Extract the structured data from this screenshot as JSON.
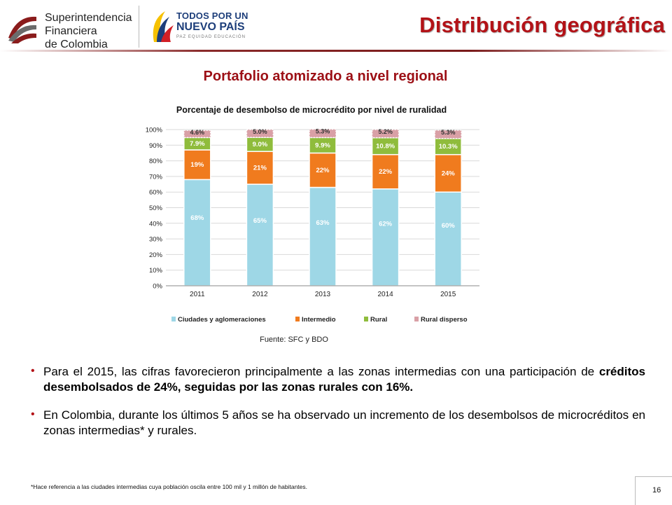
{
  "header": {
    "org_name_lines": [
      "Superintendencia",
      "Financiera",
      "de Colombia"
    ],
    "gov_logo": {
      "line1": "TODOS POR UN",
      "line2": "NUEVO PAÍS",
      "line3": "PAZ EQUIDAD EDUCACIÓN"
    },
    "title": "Distribución geográfica",
    "colors": {
      "title": "#b31217",
      "subtitle": "#9c0f15",
      "rule": "#7a1a1a"
    }
  },
  "subtitle": "Portafolio atomizado a nivel regional",
  "chart_data": {
    "type": "bar",
    "stacked": true,
    "title": "Porcentaje de desembolso de microcrédito por nivel de ruralidad",
    "categories": [
      "2011",
      "2012",
      "2013",
      "2014",
      "2015"
    ],
    "ylim": [
      0,
      100
    ],
    "yticks": [
      "0%",
      "10%",
      "20%",
      "30%",
      "40%",
      "50%",
      "60%",
      "70%",
      "80%",
      "90%",
      "100%"
    ],
    "grid": true,
    "legend_position": "bottom",
    "series": [
      {
        "name": "Ciudades y aglomeraciones",
        "color": "#9ed7e6",
        "values": [
          68,
          65,
          63,
          62,
          60
        ],
        "labels": [
          "68%",
          "65%",
          "63%",
          "62%",
          "60%"
        ]
      },
      {
        "name": "Intermedio",
        "color": "#f07b1e",
        "values": [
          19,
          21,
          22,
          22,
          24
        ],
        "labels": [
          "19%",
          "21%",
          "22%",
          "22%",
          "24%"
        ]
      },
      {
        "name": "Rural",
        "color": "#8fbc3c",
        "values": [
          7.9,
          9.0,
          9.9,
          10.8,
          10.3
        ],
        "labels": [
          "7.9%",
          "9.0%",
          "9.9%",
          "10.8%",
          "10.3%"
        ]
      },
      {
        "name": "Rural disperso",
        "color": "#d9a0a6",
        "values": [
          4.6,
          5.0,
          5.3,
          5.2,
          5.3
        ],
        "labels": [
          "4.6%",
          "5.0%",
          "5.3%",
          "5.2%",
          "5.3%"
        ]
      }
    ]
  },
  "source": "Fuente: SFC y BDO",
  "bullets": [
    {
      "parts": [
        {
          "text": "Para el 2015, las cifras favorecieron principalmente a las zonas intermedias con una participación de ",
          "bold": false
        },
        {
          "text": "créditos desembolsados de 24%, seguidas por las zonas rurales con 16%.",
          "bold": true
        }
      ]
    },
    {
      "parts": [
        {
          "text": "En Colombia, durante los últimos 5 años se ha observado un incremento de los desembolsos de microcréditos en zonas intermedias* y rurales.",
          "bold": false
        }
      ]
    }
  ],
  "footnote": "*Hace referencia a las ciudades intermedias cuya población oscila entre 100 mil y 1 millón de habitantes.",
  "page_number": "16"
}
